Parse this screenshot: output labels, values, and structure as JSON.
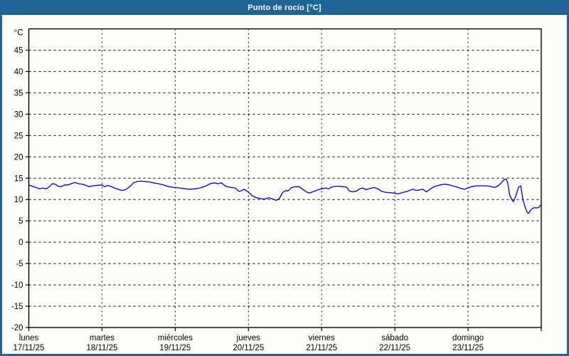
{
  "window": {
    "title": "Punto de rocío [°C]"
  },
  "colors": {
    "frame": "#1e6496",
    "titlebar_bg": "#1e6496",
    "title_text": "#ffffff",
    "plot_bg": "#fdfefa",
    "axis": "#000000",
    "grid": "#000000",
    "series": "#0000b4"
  },
  "chart_data": {
    "type": "line",
    "title": "Punto de rocío [°C]",
    "ylabel": "°C",
    "xlabel": "",
    "grid": "dashed",
    "legend_position": "none",
    "y_axis": {
      "unit": "°C",
      "range": [
        -20,
        50
      ],
      "tick_step": 5,
      "tick_labels": [
        "45",
        "40",
        "35",
        "30",
        "25",
        "20",
        "15",
        "10",
        "5",
        "0",
        "-5",
        "-10",
        "-15",
        "-20"
      ],
      "tick_values": [
        45,
        40,
        35,
        30,
        25,
        20,
        15,
        10,
        5,
        0,
        -5,
        -10,
        -15,
        -20
      ]
    },
    "x_axis": {
      "span_days": 7,
      "categories": [
        {
          "day": "lunes",
          "date": "17/11/25"
        },
        {
          "day": "martes",
          "date": "18/11/25"
        },
        {
          "day": "miércoles",
          "date": "19/11/25"
        },
        {
          "day": "jueves",
          "date": "20/11/25"
        },
        {
          "day": "viernes",
          "date": "21/11/25"
        },
        {
          "day": "sábado",
          "date": "22/11/25"
        },
        {
          "day": "domingo",
          "date": "23/11/25"
        }
      ]
    },
    "series": [
      {
        "name": "punto-de-rocio",
        "color": "#0000b4",
        "points": [
          [
            0.0,
            13.4
          ],
          [
            0.05,
            13.1
          ],
          [
            0.1,
            12.8
          ],
          [
            0.15,
            12.5
          ],
          [
            0.19,
            12.7
          ],
          [
            0.24,
            12.5
          ],
          [
            0.29,
            13.1
          ],
          [
            0.32,
            13.7
          ],
          [
            0.36,
            13.6
          ],
          [
            0.4,
            13.1
          ],
          [
            0.44,
            13.0
          ],
          [
            0.49,
            13.4
          ],
          [
            0.53,
            13.4
          ],
          [
            0.58,
            13.7
          ],
          [
            0.63,
            14.0
          ],
          [
            0.68,
            13.7
          ],
          [
            0.73,
            13.6
          ],
          [
            0.78,
            13.3
          ],
          [
            0.83,
            13.0
          ],
          [
            0.87,
            13.2
          ],
          [
            0.93,
            13.3
          ],
          [
            1.0,
            13.4
          ],
          [
            1.04,
            13.0
          ],
          [
            1.08,
            13.3
          ],
          [
            1.13,
            13.0
          ],
          [
            1.17,
            12.7
          ],
          [
            1.22,
            12.4
          ],
          [
            1.27,
            12.1
          ],
          [
            1.32,
            12.3
          ],
          [
            1.38,
            13.0
          ],
          [
            1.43,
            13.9
          ],
          [
            1.48,
            14.2
          ],
          [
            1.53,
            14.3
          ],
          [
            1.59,
            14.2
          ],
          [
            1.65,
            14.1
          ],
          [
            1.7,
            13.9
          ],
          [
            1.77,
            13.7
          ],
          [
            1.84,
            13.4
          ],
          [
            1.91,
            13.0
          ],
          [
            1.99,
            12.8
          ],
          [
            2.06,
            12.7
          ],
          [
            2.14,
            12.5
          ],
          [
            2.2,
            12.4
          ],
          [
            2.27,
            12.5
          ],
          [
            2.34,
            12.7
          ],
          [
            2.41,
            13.1
          ],
          [
            2.48,
            13.7
          ],
          [
            2.53,
            13.9
          ],
          [
            2.58,
            13.7
          ],
          [
            2.63,
            13.9
          ],
          [
            2.69,
            13.1
          ],
          [
            2.76,
            12.8
          ],
          [
            2.82,
            12.7
          ],
          [
            2.87,
            11.9
          ],
          [
            2.91,
            12.1
          ],
          [
            2.94,
            12.4
          ],
          [
            3.0,
            11.7
          ],
          [
            3.06,
            10.8
          ],
          [
            3.11,
            10.4
          ],
          [
            3.17,
            10.2
          ],
          [
            3.22,
            10.1
          ],
          [
            3.28,
            10.4
          ],
          [
            3.33,
            10.1
          ],
          [
            3.38,
            9.8
          ],
          [
            3.42,
            10.2
          ],
          [
            3.47,
            11.7
          ],
          [
            3.51,
            12.1
          ],
          [
            3.54,
            12.0
          ],
          [
            3.59,
            12.8
          ],
          [
            3.64,
            13.0
          ],
          [
            3.69,
            13.0
          ],
          [
            3.74,
            12.4
          ],
          [
            3.79,
            11.8
          ],
          [
            3.83,
            11.5
          ],
          [
            3.88,
            11.8
          ],
          [
            3.94,
            12.2
          ],
          [
            4.0,
            12.5
          ],
          [
            4.06,
            12.7
          ],
          [
            4.09,
            12.5
          ],
          [
            4.14,
            12.9
          ],
          [
            4.18,
            13.1
          ],
          [
            4.24,
            13.1
          ],
          [
            4.29,
            13.0
          ],
          [
            4.34,
            12.9
          ],
          [
            4.38,
            12.0
          ],
          [
            4.43,
            11.8
          ],
          [
            4.48,
            12.0
          ],
          [
            4.52,
            12.5
          ],
          [
            4.56,
            12.7
          ],
          [
            4.61,
            12.3
          ],
          [
            4.66,
            12.6
          ],
          [
            4.72,
            12.8
          ],
          [
            4.77,
            12.5
          ],
          [
            4.82,
            11.9
          ],
          [
            4.87,
            11.7
          ],
          [
            4.93,
            11.6
          ],
          [
            5.0,
            11.5
          ],
          [
            5.04,
            11.3
          ],
          [
            5.1,
            11.6
          ],
          [
            5.17,
            11.9
          ],
          [
            5.24,
            12.4
          ],
          [
            5.3,
            12.1
          ],
          [
            5.38,
            12.4
          ],
          [
            5.43,
            11.8
          ],
          [
            5.5,
            12.6
          ],
          [
            5.55,
            13.1
          ],
          [
            5.62,
            13.4
          ],
          [
            5.68,
            13.6
          ],
          [
            5.75,
            13.4
          ],
          [
            5.81,
            13.1
          ],
          [
            5.85,
            12.9
          ],
          [
            5.9,
            12.6
          ],
          [
            5.95,
            12.4
          ],
          [
            6.0,
            12.7
          ],
          [
            6.05,
            13.0
          ],
          [
            6.11,
            13.2
          ],
          [
            6.17,
            13.2
          ],
          [
            6.24,
            13.2
          ],
          [
            6.3,
            13.1
          ],
          [
            6.36,
            12.8
          ],
          [
            6.41,
            13.2
          ],
          [
            6.46,
            14.0
          ],
          [
            6.49,
            14.6
          ],
          [
            6.52,
            14.8
          ],
          [
            6.54,
            14.0
          ],
          [
            6.57,
            11.0
          ],
          [
            6.6,
            9.9
          ],
          [
            6.62,
            9.5
          ],
          [
            6.65,
            10.7
          ],
          [
            6.69,
            12.9
          ],
          [
            6.72,
            13.2
          ],
          [
            6.75,
            9.9
          ],
          [
            6.78,
            8.2
          ],
          [
            6.81,
            6.9
          ],
          [
            6.83,
            6.8
          ],
          [
            6.85,
            7.4
          ],
          [
            6.88,
            7.9
          ],
          [
            6.91,
            8.1
          ],
          [
            6.94,
            8.0
          ],
          [
            6.97,
            8.2
          ],
          [
            6.99,
            8.7
          ]
        ]
      }
    ]
  }
}
